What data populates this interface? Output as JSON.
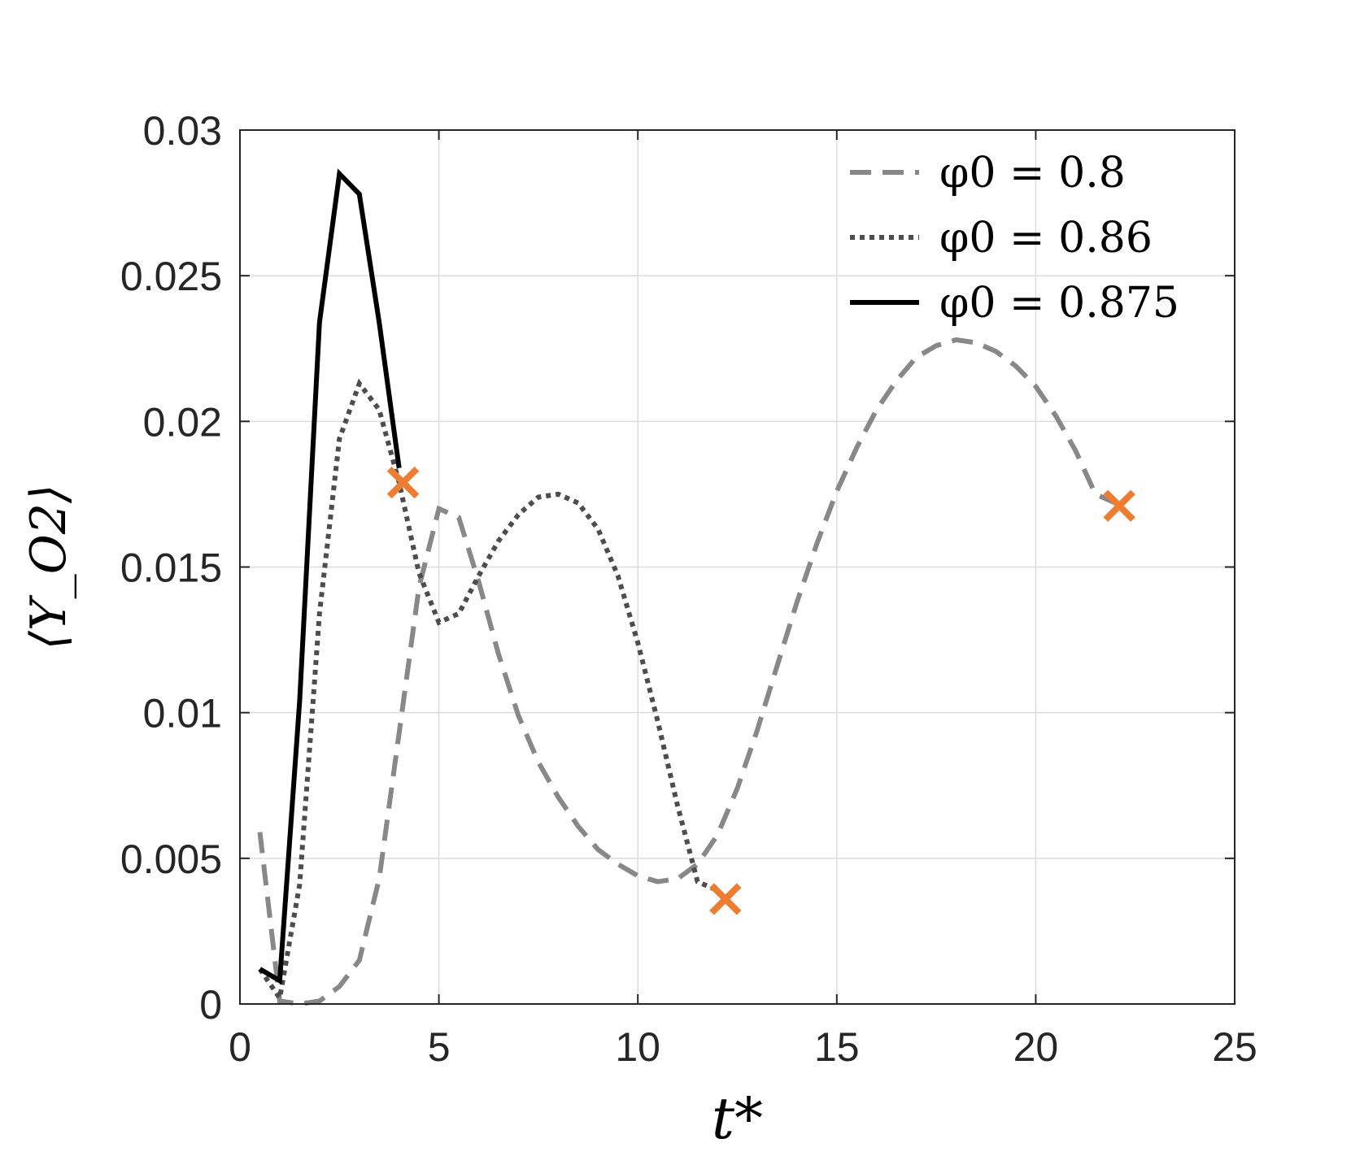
{
  "chart_data": {
    "type": "line",
    "xlabel": "t*",
    "ylabel": "⟨Y_O2⟩",
    "xlim": [
      0,
      25
    ],
    "ylim": [
      0,
      0.03
    ],
    "xticks": [
      0,
      5,
      10,
      15,
      20,
      25
    ],
    "xtick_labels": [
      "0",
      "5",
      "10",
      "15",
      "20",
      "25"
    ],
    "yticks": [
      0,
      0.005,
      0.01,
      0.015,
      0.02,
      0.025,
      0.03
    ],
    "ytick_labels": [
      "0",
      "0.005",
      "0.01",
      "0.015",
      "0.02",
      "0.025",
      "0.03"
    ],
    "grid": true,
    "legend_position": "top-right",
    "series": [
      {
        "name": "φ0 = 0.8",
        "style": "dashed",
        "color": "#888888",
        "x": [
          0.5,
          1.0,
          1.5,
          2.0,
          2.5,
          3.0,
          3.5,
          4.0,
          4.5,
          5.0,
          5.5,
          6.0,
          6.5,
          7.0,
          7.5,
          8.0,
          8.5,
          9.0,
          9.5,
          10.0,
          10.5,
          11.0,
          11.5,
          12.0,
          12.5,
          13.0,
          13.5,
          14.0,
          14.5,
          15.0,
          15.5,
          16.0,
          16.5,
          17.0,
          17.5,
          18.0,
          18.5,
          19.0,
          19.5,
          20.0,
          20.5,
          21.0,
          21.5,
          22.0,
          22.2
        ],
        "y": [
          0.0059,
          0.0001,
          0.0,
          0.0001,
          0.0006,
          0.0015,
          0.0043,
          0.0093,
          0.0143,
          0.017,
          0.0167,
          0.0145,
          0.012,
          0.0099,
          0.0083,
          0.0071,
          0.0061,
          0.0053,
          0.0048,
          0.0044,
          0.0042,
          0.0043,
          0.0048,
          0.0058,
          0.0074,
          0.0094,
          0.0116,
          0.0138,
          0.0158,
          0.0176,
          0.0191,
          0.0204,
          0.0214,
          0.0222,
          0.0226,
          0.0228,
          0.0227,
          0.0224,
          0.0219,
          0.0212,
          0.0202,
          0.019,
          0.0175,
          0.0172,
          0.0171
        ]
      },
      {
        "name": "φ0 = 0.86",
        "style": "dotted",
        "color": "#4d4d4d",
        "x": [
          0.5,
          1.0,
          1.5,
          2.0,
          2.5,
          3.0,
          3.5,
          4.0,
          4.5,
          5.0,
          5.5,
          6.0,
          6.5,
          7.0,
          7.5,
          8.0,
          8.5,
          9.0,
          9.5,
          10.0,
          10.5,
          11.0,
          11.5,
          12.0,
          12.2
        ],
        "y": [
          0.0012,
          0.0002,
          0.0041,
          0.0134,
          0.0194,
          0.0213,
          0.0204,
          0.0179,
          0.0148,
          0.0131,
          0.0134,
          0.0147,
          0.0159,
          0.0168,
          0.0174,
          0.0175,
          0.0172,
          0.0163,
          0.0147,
          0.0124,
          0.0097,
          0.0068,
          0.0042,
          0.0039,
          0.0036
        ]
      },
      {
        "name": "φ0 = 0.875",
        "style": "solid",
        "color": "#000000",
        "x": [
          0.5,
          1.0,
          1.5,
          2.0,
          2.5,
          3.0,
          3.5,
          4.0
        ],
        "y": [
          0.0012,
          0.0008,
          0.0104,
          0.0234,
          0.0285,
          0.0278,
          0.0234,
          0.0184
        ]
      }
    ],
    "markers": {
      "shape": "x",
      "color": "#ee7d31",
      "points": [
        {
          "x": 4.1,
          "y": 0.0179
        },
        {
          "x": 12.2,
          "y": 0.0036
        },
        {
          "x": 22.1,
          "y": 0.0171
        }
      ]
    }
  }
}
